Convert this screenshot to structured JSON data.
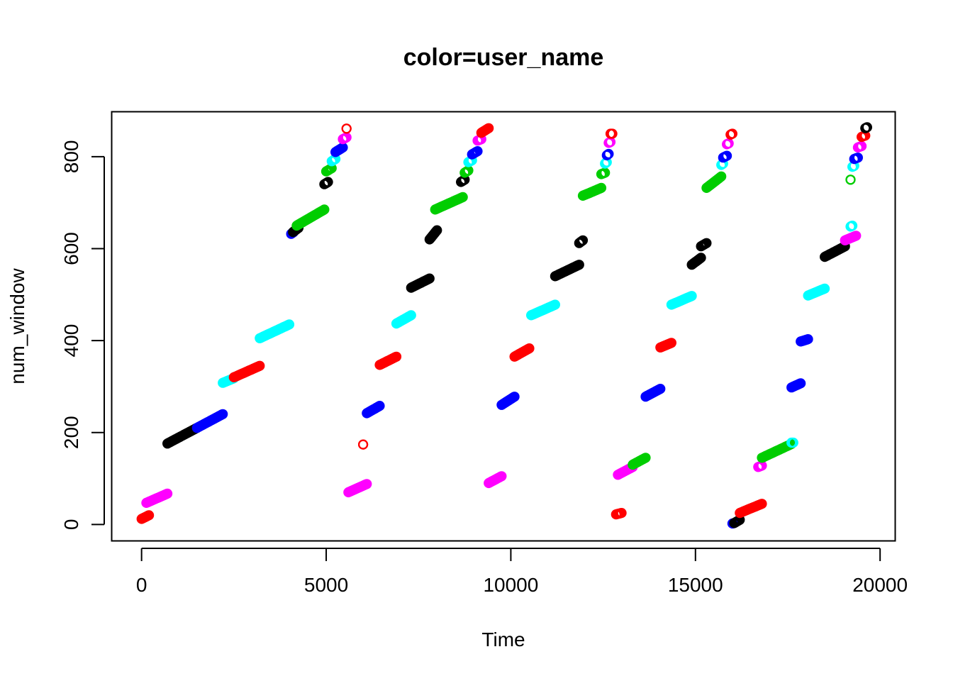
{
  "chart_data": {
    "type": "scatter",
    "title": "color=user_name",
    "xlabel": "Time",
    "ylabel": "num_window",
    "xlim": [
      -800,
      20400
    ],
    "ylim": [
      -35,
      897
    ],
    "xticks": [
      0,
      5000,
      10000,
      15000,
      20000
    ],
    "yticks": [
      0,
      200,
      400,
      600,
      800
    ],
    "grid": false,
    "legend": "none",
    "marker": "open-circle",
    "colors": {
      "black": "#000000",
      "red": "#ff0000",
      "green": "#00cd00",
      "blue": "#0000ff",
      "cyan": "#00ffff",
      "magenta": "#ff00ff"
    },
    "segments": [
      {
        "color": "red",
        "x": [
          0,
          200
        ],
        "y": [
          12,
          20
        ]
      },
      {
        "color": "magenta",
        "x": [
          130,
          700
        ],
        "y": [
          47,
          67
        ]
      },
      {
        "color": "black",
        "x": [
          700,
          1500
        ],
        "y": [
          176,
          210
        ]
      },
      {
        "color": "blue",
        "x": [
          1500,
          2200
        ],
        "y": [
          210,
          240
        ]
      },
      {
        "color": "cyan",
        "x": [
          2200,
          2500
        ],
        "y": [
          308,
          318
        ]
      },
      {
        "color": "red",
        "x": [
          2500,
          3200
        ],
        "y": [
          320,
          345
        ]
      },
      {
        "color": "cyan",
        "x": [
          3200,
          4000
        ],
        "y": [
          405,
          435
        ]
      },
      {
        "color": "blue",
        "x": [
          4050,
          4120
        ],
        "y": [
          632,
          636
        ]
      },
      {
        "color": "black",
        "x": [
          4100,
          4250
        ],
        "y": [
          636,
          645
        ]
      },
      {
        "color": "green",
        "x": [
          4200,
          4950
        ],
        "y": [
          650,
          685
        ]
      },
      {
        "color": "black",
        "x": [
          4950,
          5050
        ],
        "y": [
          740,
          745
        ]
      },
      {
        "color": "green",
        "x": [
          5000,
          5150
        ],
        "y": [
          768,
          775
        ]
      },
      {
        "color": "cyan",
        "x": [
          5150,
          5250
        ],
        "y": [
          790,
          795
        ]
      },
      {
        "color": "blue",
        "x": [
          5250,
          5450
        ],
        "y": [
          810,
          820
        ]
      },
      {
        "color": "magenta",
        "x": [
          5450,
          5550
        ],
        "y": [
          838,
          842
        ]
      },
      {
        "color": "red",
        "x": [
          5550,
          5550
        ],
        "y": [
          861,
          861
        ]
      },
      {
        "color": "magenta",
        "x": [
          5600,
          6100
        ],
        "y": [
          70,
          88
        ]
      },
      {
        "color": "red",
        "x": [
          6000,
          6000
        ],
        "y": [
          174,
          174
        ]
      },
      {
        "color": "blue",
        "x": [
          6100,
          6450
        ],
        "y": [
          242,
          258
        ]
      },
      {
        "color": "red",
        "x": [
          6450,
          6900
        ],
        "y": [
          347,
          365
        ]
      },
      {
        "color": "cyan",
        "x": [
          6900,
          7300
        ],
        "y": [
          437,
          455
        ]
      },
      {
        "color": "black",
        "x": [
          7300,
          7800
        ],
        "y": [
          515,
          535
        ]
      },
      {
        "color": "black",
        "x": [
          7800,
          8000
        ],
        "y": [
          620,
          640
        ]
      },
      {
        "color": "green",
        "x": [
          7950,
          8700
        ],
        "y": [
          685,
          712
        ]
      },
      {
        "color": "black",
        "x": [
          8650,
          8750
        ],
        "y": [
          745,
          750
        ]
      },
      {
        "color": "green",
        "x": [
          8750,
          8850
        ],
        "y": [
          765,
          770
        ]
      },
      {
        "color": "cyan",
        "x": [
          8850,
          8950
        ],
        "y": [
          788,
          792
        ]
      },
      {
        "color": "blue",
        "x": [
          8950,
          9100
        ],
        "y": [
          805,
          812
        ]
      },
      {
        "color": "magenta",
        "x": [
          9100,
          9200
        ],
        "y": [
          835,
          838
        ]
      },
      {
        "color": "red",
        "x": [
          9200,
          9400
        ],
        "y": [
          852,
          862
        ]
      },
      {
        "color": "magenta",
        "x": [
          9400,
          9750
        ],
        "y": [
          90,
          105
        ]
      },
      {
        "color": "blue",
        "x": [
          9750,
          10100
        ],
        "y": [
          260,
          278
        ]
      },
      {
        "color": "red",
        "x": [
          10100,
          10500
        ],
        "y": [
          365,
          383
        ]
      },
      {
        "color": "cyan",
        "x": [
          10550,
          11200
        ],
        "y": [
          455,
          478
        ]
      },
      {
        "color": "black",
        "x": [
          11200,
          11850
        ],
        "y": [
          540,
          565
        ]
      },
      {
        "color": "black",
        "x": [
          11850,
          11950
        ],
        "y": [
          612,
          618
        ]
      },
      {
        "color": "green",
        "x": [
          11950,
          12450
        ],
        "y": [
          715,
          732
        ]
      },
      {
        "color": "green",
        "x": [
          12450,
          12550
        ],
        "y": [
          762,
          765
        ]
      },
      {
        "color": "cyan",
        "x": [
          12550,
          12600
        ],
        "y": [
          785,
          788
        ]
      },
      {
        "color": "blue",
        "x": [
          12600,
          12650
        ],
        "y": [
          803,
          806
        ]
      },
      {
        "color": "magenta",
        "x": [
          12650,
          12700
        ],
        "y": [
          830,
          832
        ]
      },
      {
        "color": "red",
        "x": [
          12700,
          12750
        ],
        "y": [
          850,
          850
        ]
      },
      {
        "color": "red",
        "x": [
          12850,
          13000
        ],
        "y": [
          22,
          25
        ]
      },
      {
        "color": "magenta",
        "x": [
          12900,
          13300
        ],
        "y": [
          108,
          125
        ]
      },
      {
        "color": "green",
        "x": [
          13300,
          13650
        ],
        "y": [
          130,
          145
        ]
      },
      {
        "color": "blue",
        "x": [
          13650,
          14050
        ],
        "y": [
          278,
          295
        ]
      },
      {
        "color": "red",
        "x": [
          14050,
          14350
        ],
        "y": [
          385,
          395
        ]
      },
      {
        "color": "cyan",
        "x": [
          14350,
          14900
        ],
        "y": [
          478,
          497
        ]
      },
      {
        "color": "black",
        "x": [
          14900,
          15150
        ],
        "y": [
          565,
          580
        ]
      },
      {
        "color": "black",
        "x": [
          15150,
          15300
        ],
        "y": [
          605,
          612
        ]
      },
      {
        "color": "green",
        "x": [
          15300,
          15700
        ],
        "y": [
          732,
          757
        ]
      },
      {
        "color": "cyan",
        "x": [
          15700,
          15750
        ],
        "y": [
          782,
          785
        ]
      },
      {
        "color": "blue",
        "x": [
          15750,
          15850
        ],
        "y": [
          798,
          802
        ]
      },
      {
        "color": "magenta",
        "x": [
          15850,
          15900
        ],
        "y": [
          827,
          829
        ]
      },
      {
        "color": "red",
        "x": [
          15950,
          16000
        ],
        "y": [
          848,
          850
        ]
      },
      {
        "color": "blue",
        "x": [
          16000,
          16050
        ],
        "y": [
          2,
          3
        ]
      },
      {
        "color": "black",
        "x": [
          16050,
          16200
        ],
        "y": [
          3,
          10
        ]
      },
      {
        "color": "red",
        "x": [
          16200,
          16800
        ],
        "y": [
          25,
          45
        ]
      },
      {
        "color": "magenta",
        "x": [
          16700,
          16800
        ],
        "y": [
          125,
          128
        ]
      },
      {
        "color": "green",
        "x": [
          16800,
          17600
        ],
        "y": [
          145,
          175
        ]
      },
      {
        "color": "cyan",
        "x": [
          17600,
          17650
        ],
        "y": [
          178,
          178
        ]
      },
      {
        "color": "blue",
        "x": [
          17600,
          17850
        ],
        "y": [
          298,
          307
        ]
      },
      {
        "color": "blue",
        "x": [
          17850,
          18050
        ],
        "y": [
          398,
          403
        ]
      },
      {
        "color": "cyan",
        "x": [
          18050,
          18500
        ],
        "y": [
          498,
          513
        ]
      },
      {
        "color": "black",
        "x": [
          18500,
          19050
        ],
        "y": [
          582,
          605
        ]
      },
      {
        "color": "magenta",
        "x": [
          19050,
          19350
        ],
        "y": [
          618,
          628
        ]
      },
      {
        "color": "cyan",
        "x": [
          19200,
          19250
        ],
        "y": [
          648,
          650
        ]
      },
      {
        "color": "green",
        "x": [
          19200,
          19200
        ],
        "y": [
          750,
          750
        ]
      },
      {
        "color": "cyan",
        "x": [
          19250,
          19300
        ],
        "y": [
          778,
          780
        ]
      },
      {
        "color": "blue",
        "x": [
          19300,
          19400
        ],
        "y": [
          795,
          798
        ]
      },
      {
        "color": "magenta",
        "x": [
          19400,
          19500
        ],
        "y": [
          820,
          823
        ]
      },
      {
        "color": "red",
        "x": [
          19500,
          19600
        ],
        "y": [
          843,
          846
        ]
      },
      {
        "color": "black",
        "x": [
          19600,
          19650
        ],
        "y": [
          862,
          864
        ]
      }
    ]
  }
}
